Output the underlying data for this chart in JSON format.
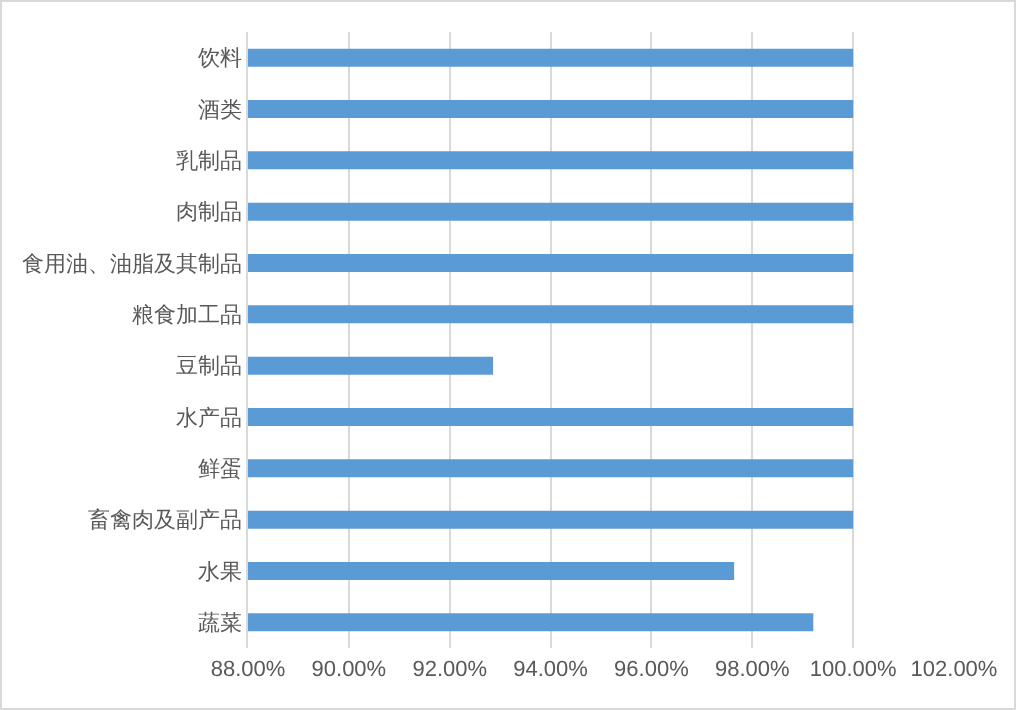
{
  "chart_data": {
    "type": "bar",
    "orientation": "horizontal",
    "categories": [
      "饮料",
      "酒类",
      "乳制品",
      "肉制品",
      "食用油、油脂及其制品",
      "粮食加工品",
      "豆制品",
      "水产品",
      "鲜蛋",
      "畜禽肉及副产品",
      "水果",
      "蔬菜"
    ],
    "values": [
      100,
      100,
      100,
      100,
      100,
      100,
      92.86,
      100,
      100,
      100,
      97.64,
      99.21
    ],
    "color": "#5b9bd5",
    "xlim": [
      88,
      102
    ],
    "xticks": [
      {
        "value": 88,
        "label": "88.00%"
      },
      {
        "value": 90,
        "label": "90.00%"
      },
      {
        "value": 92,
        "label": "92.00%"
      },
      {
        "value": 94,
        "label": "94.00%"
      },
      {
        "value": 96,
        "label": "96.00%"
      },
      {
        "value": 98,
        "label": "98.00%"
      },
      {
        "value": 100,
        "label": "100.00%"
      },
      {
        "value": 102,
        "label": "102.00%"
      }
    ],
    "grid": "x"
  }
}
